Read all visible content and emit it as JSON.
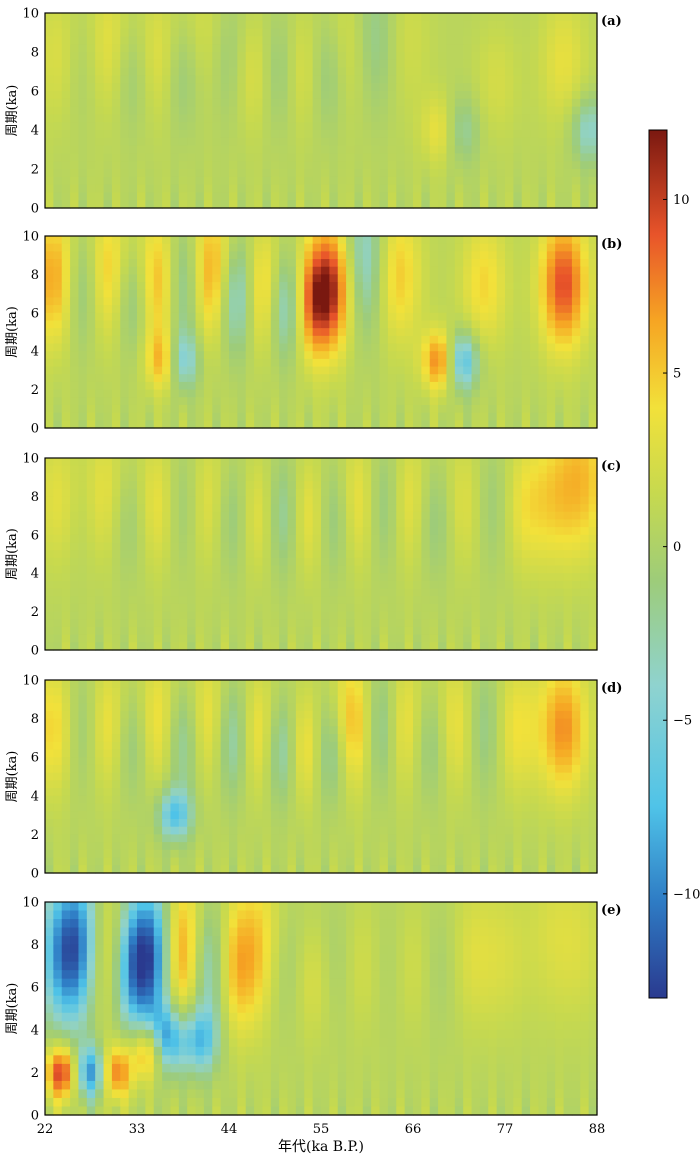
{
  "chart_data": {
    "type": "heatmap",
    "title": "",
    "xlabel": "年代(ka B.P.)",
    "ylabel": "周期(ka)",
    "xlim": [
      22,
      88
    ],
    "ylim": [
      0,
      10
    ],
    "x_ticks": [
      "22",
      "33",
      "44",
      "55",
      "66",
      "77",
      "88"
    ],
    "y_ticks": [
      "0",
      "2",
      "4",
      "6",
      "8",
      "10"
    ],
    "colorbar": {
      "range": [
        -13,
        12
      ],
      "ticks": [
        "10",
        "5",
        "0",
        "−5",
        "−10"
      ],
      "tick_values": [
        10,
        5,
        0,
        -5,
        -10
      ],
      "colormap": [
        "#2a3a8f",
        "#2e7bc4",
        "#4fc3e8",
        "#8fd3cf",
        "#9dcc7a",
        "#c6d94f",
        "#f2e13a",
        "#f6a523",
        "#e8542a",
        "#7a1810"
      ]
    },
    "panels": [
      {
        "label": "(a)",
        "ridges": [
          {
            "x": 24.0,
            "period": 7.8,
            "amp": 0.25
          },
          {
            "x": 26.5,
            "period": 7.5,
            "amp": -0.25
          },
          {
            "x": 29.5,
            "period": 8.0,
            "amp": 0.35
          },
          {
            "x": 32.5,
            "period": 7.0,
            "amp": -0.3
          },
          {
            "x": 35.5,
            "period": 7.5,
            "amp": 0.35
          },
          {
            "x": 38.5,
            "period": 7.0,
            "amp": -0.35
          },
          {
            "x": 41.0,
            "period": 8.0,
            "amp": 0.3
          },
          {
            "x": 44.0,
            "period": 7.5,
            "amp": -0.3
          },
          {
            "x": 47.0,
            "period": 7.0,
            "amp": 0.35
          },
          {
            "x": 50.0,
            "period": 7.0,
            "amp": -0.35
          },
          {
            "x": 53.0,
            "period": 7.0,
            "amp": 0.4
          },
          {
            "x": 55.5,
            "period": 7.0,
            "amp": -0.4
          },
          {
            "x": 58.5,
            "period": 8.0,
            "amp": 0.35
          },
          {
            "x": 61.0,
            "period": 8.5,
            "amp": -0.35
          },
          {
            "x": 65.0,
            "period": 8.5,
            "amp": 0.15
          },
          {
            "x": 69.5,
            "period": 4.0,
            "amp": 0.35
          },
          {
            "x": 71.5,
            "period": 4.0,
            "amp": -0.35
          },
          {
            "x": 76.0,
            "period": 6.5,
            "amp": 0.15
          },
          {
            "x": 84.0,
            "period": 7.5,
            "amp": 0.25
          },
          {
            "x": 87.0,
            "period": 4.0,
            "amp": -0.4
          }
        ]
      },
      {
        "label": "(b)",
        "ridges": [
          {
            "x": 23.5,
            "period": 7.8,
            "amp": 0.65
          },
          {
            "x": 26.5,
            "period": 7.5,
            "amp": -0.55
          },
          {
            "x": 29.5,
            "period": 7.8,
            "amp": 0.65
          },
          {
            "x": 32.5,
            "period": 7.0,
            "amp": -0.55
          },
          {
            "x": 35.5,
            "period": 7.5,
            "amp": 0.75
          },
          {
            "x": 38.5,
            "period": 7.5,
            "amp": -0.6
          },
          {
            "x": 42.0,
            "period": 7.8,
            "amp": 0.8
          },
          {
            "x": 45.0,
            "period": 7.0,
            "amp": -0.8
          },
          {
            "x": 48.0,
            "period": 7.0,
            "amp": 0.75
          },
          {
            "x": 51.0,
            "period": 6.5,
            "amp": -0.85
          },
          {
            "x": 53.5,
            "period": 6.5,
            "amp": 0.8
          },
          {
            "x": 56.5,
            "period": 7.5,
            "amp": 0.85
          },
          {
            "x": 60.0,
            "period": 8.5,
            "amp": -0.55
          },
          {
            "x": 64.0,
            "period": 8.0,
            "amp": 0.45
          },
          {
            "x": 69.5,
            "period": 3.5,
            "amp": 0.85
          },
          {
            "x": 71.5,
            "period": 3.5,
            "amp": -0.85
          },
          {
            "x": 74.5,
            "period": 7.5,
            "amp": 0.35
          },
          {
            "x": 84.0,
            "period": 7.5,
            "amp": 0.8
          },
          {
            "x": 36.5,
            "period": 3.5,
            "amp": 0.7
          },
          {
            "x": 38.0,
            "period": 3.5,
            "amp": -0.7
          }
        ]
      },
      {
        "label": "(c)",
        "ridges": [
          {
            "x": 24.0,
            "period": 7.8,
            "amp": 0.3
          },
          {
            "x": 26.5,
            "period": 7.5,
            "amp": -0.25
          },
          {
            "x": 29.0,
            "period": 7.8,
            "amp": 0.4
          },
          {
            "x": 32.0,
            "period": 7.0,
            "amp": -0.3
          },
          {
            "x": 35.5,
            "period": 7.5,
            "amp": 0.4
          },
          {
            "x": 38.5,
            "period": 7.5,
            "amp": -0.35
          },
          {
            "x": 41.5,
            "period": 7.5,
            "amp": 0.4
          },
          {
            "x": 44.5,
            "period": 7.0,
            "amp": -0.4
          },
          {
            "x": 47.5,
            "period": 7.0,
            "amp": 0.45
          },
          {
            "x": 50.5,
            "period": 7.0,
            "amp": -0.5
          },
          {
            "x": 53.5,
            "period": 7.0,
            "amp": 0.5
          },
          {
            "x": 56.5,
            "period": 7.0,
            "amp": -0.45
          },
          {
            "x": 59.5,
            "period": 7.5,
            "amp": 0.5
          },
          {
            "x": 62.5,
            "period": 7.5,
            "amp": -0.45
          },
          {
            "x": 65.5,
            "period": 7.5,
            "amp": 0.45
          },
          {
            "x": 68.5,
            "period": 7.0,
            "amp": -0.35
          },
          {
            "x": 72.0,
            "period": 7.5,
            "amp": 0.3
          },
          {
            "x": 75.5,
            "period": 7.5,
            "amp": -0.25
          },
          {
            "x": 79.0,
            "period": 7.5,
            "amp": 0.3
          },
          {
            "x": 83.0,
            "period": 8.0,
            "amp": 0.3
          },
          {
            "x": 86.5,
            "period": 9.0,
            "amp": 0.4
          }
        ]
      },
      {
        "label": "(d)",
        "ridges": [
          {
            "x": 23.5,
            "period": 7.5,
            "amp": 0.45
          },
          {
            "x": 26.5,
            "period": 7.5,
            "amp": -0.4
          },
          {
            "x": 29.5,
            "period": 7.5,
            "amp": 0.5
          },
          {
            "x": 32.5,
            "period": 7.0,
            "amp": -0.45
          },
          {
            "x": 35.5,
            "period": 7.5,
            "amp": 0.55
          },
          {
            "x": 38.5,
            "period": 7.0,
            "amp": -0.55
          },
          {
            "x": 41.5,
            "period": 7.5,
            "amp": 0.55
          },
          {
            "x": 44.5,
            "period": 7.0,
            "amp": -0.6
          },
          {
            "x": 47.5,
            "period": 7.0,
            "amp": 0.6
          },
          {
            "x": 50.5,
            "period": 6.5,
            "amp": -0.7
          },
          {
            "x": 53.0,
            "period": 6.5,
            "amp": 0.7
          },
          {
            "x": 56.0,
            "period": 6.5,
            "amp": -0.6
          },
          {
            "x": 59.0,
            "period": 7.5,
            "amp": 0.75
          },
          {
            "x": 62.0,
            "period": 7.5,
            "amp": -0.6
          },
          {
            "x": 65.0,
            "period": 7.5,
            "amp": 0.55
          },
          {
            "x": 68.0,
            "period": 7.0,
            "amp": -0.45
          },
          {
            "x": 71.0,
            "period": 7.5,
            "amp": 0.45
          },
          {
            "x": 74.5,
            "period": 7.5,
            "amp": -0.35
          },
          {
            "x": 78.0,
            "period": 7.5,
            "amp": 0.35
          },
          {
            "x": 84.0,
            "period": 7.5,
            "amp": 0.6
          },
          {
            "x": 37.5,
            "period": 3.0,
            "amp": -0.6
          }
        ]
      },
      {
        "label": "(e)",
        "ridges": [
          {
            "x": 24.0,
            "period": 7.5,
            "amp": -0.6
          },
          {
            "x": 26.5,
            "period": 8.0,
            "amp": -0.75
          },
          {
            "x": 29.5,
            "period": 7.5,
            "amp": 0.7
          },
          {
            "x": 32.0,
            "period": 7.0,
            "amp": -0.8
          },
          {
            "x": 35.0,
            "period": 7.5,
            "amp": -0.9
          },
          {
            "x": 38.5,
            "period": 7.5,
            "amp": 0.85
          },
          {
            "x": 41.5,
            "period": 7.0,
            "amp": -0.7
          },
          {
            "x": 44.5,
            "period": 7.0,
            "amp": 0.55
          },
          {
            "x": 48.0,
            "period": 8.0,
            "amp": 0.35
          },
          {
            "x": 51.0,
            "period": 7.0,
            "amp": -0.25
          },
          {
            "x": 54.0,
            "period": 6.5,
            "amp": 0.3
          },
          {
            "x": 56.5,
            "period": 7.0,
            "amp": -0.2
          },
          {
            "x": 60.0,
            "period": 7.0,
            "amp": 0.2
          },
          {
            "x": 63.0,
            "period": 7.0,
            "amp": -0.15
          },
          {
            "x": 66.0,
            "period": 7.0,
            "amp": 0.2
          },
          {
            "x": 69.0,
            "period": 7.0,
            "amp": -0.15
          },
          {
            "x": 73.0,
            "period": 7.5,
            "amp": 0.2
          },
          {
            "x": 77.0,
            "period": 7.5,
            "amp": 0.15
          },
          {
            "x": 82.5,
            "period": 8.5,
            "amp": 0.15
          },
          {
            "x": 86.0,
            "period": 8.0,
            "amp": 0.15
          },
          {
            "x": 24.0,
            "period": 2.0,
            "amp": 0.9
          },
          {
            "x": 27.5,
            "period": 2.0,
            "amp": -0.8
          },
          {
            "x": 30.5,
            "period": 2.0,
            "amp": 0.7
          },
          {
            "x": 34.5,
            "period": 3.0,
            "amp": 0.75
          },
          {
            "x": 36.5,
            "period": 3.5,
            "amp": -0.85
          },
          {
            "x": 40.5,
            "period": 3.5,
            "amp": -0.6
          }
        ]
      }
    ]
  }
}
